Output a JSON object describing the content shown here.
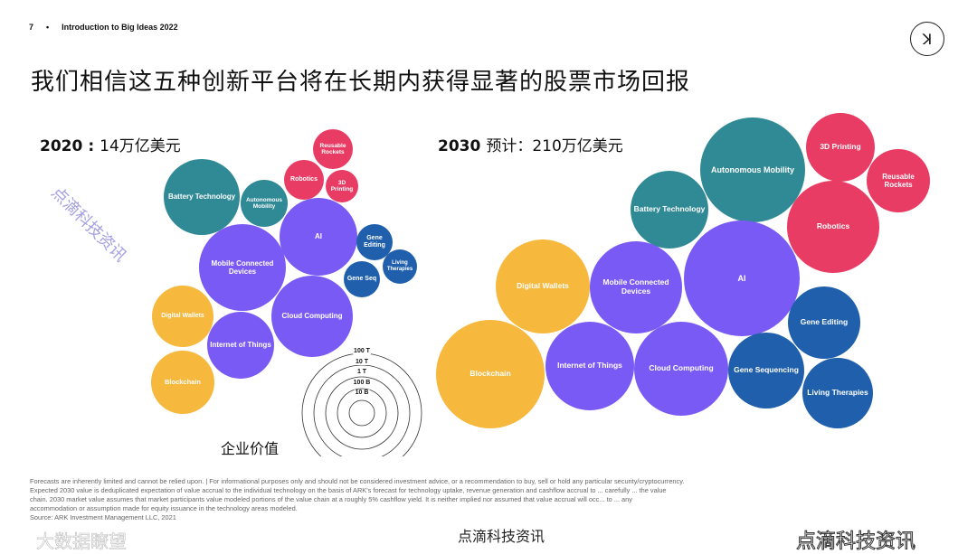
{
  "header": {
    "page_number": "7",
    "separator": "•",
    "deck_title": "Introduction to Big Ideas 2022"
  },
  "logo_text": "ARK",
  "title": "我们相信这五种创新平台将在长期内获得显著的股票市场回报",
  "legend_caption": "企业价值",
  "colors": {
    "teal": "#2f8a95",
    "purple": "#7a5af5",
    "pink": "#e83c64",
    "blue": "#1f5fab",
    "yellow": "#f6b83d"
  },
  "chart_data": [
    {
      "type": "bubble",
      "year": "2020",
      "title_value": "14万亿美元",
      "title_prefix": "",
      "bubbles": [
        {
          "label": "Battery Technology",
          "color": "teal"
        },
        {
          "label": "Autonomous Mobility",
          "color": "teal"
        },
        {
          "label": "Robotics",
          "color": "pink"
        },
        {
          "label": "Reusable Rockets",
          "color": "pink"
        },
        {
          "label": "3D Printing",
          "color": "pink"
        },
        {
          "label": "AI",
          "color": "purple"
        },
        {
          "label": "Mobile Connected Devices",
          "color": "purple"
        },
        {
          "label": "Gene Editing",
          "color": "blue"
        },
        {
          "label": "Living Therapies",
          "color": "blue"
        },
        {
          "label": "Gene Seq",
          "color": "blue"
        },
        {
          "label": "Cloud Computing",
          "color": "purple"
        },
        {
          "label": "Digital Wallets",
          "color": "yellow"
        },
        {
          "label": "Internet of Things",
          "color": "purple"
        },
        {
          "label": "Blockchain",
          "color": "yellow"
        }
      ]
    },
    {
      "type": "bubble",
      "year": "2030",
      "title_prefix": "预计：",
      "title_value": "210万亿美元",
      "bubbles": [
        {
          "label": "Autonomous Mobility",
          "color": "teal"
        },
        {
          "label": "3D Printing",
          "color": "pink"
        },
        {
          "label": "Reusable Rockets",
          "color": "pink"
        },
        {
          "label": "Battery Technology",
          "color": "teal"
        },
        {
          "label": "Robotics",
          "color": "pink"
        },
        {
          "label": "AI",
          "color": "purple"
        },
        {
          "label": "Mobile Connected Devices",
          "color": "purple"
        },
        {
          "label": "Digital Wallets",
          "color": "yellow"
        },
        {
          "label": "Gene Editing",
          "color": "blue"
        },
        {
          "label": "Blockchain",
          "color": "yellow"
        },
        {
          "label": "Internet of Things",
          "color": "purple"
        },
        {
          "label": "Cloud Computing",
          "color": "purple"
        },
        {
          "label": "Gene Sequencing",
          "color": "blue"
        },
        {
          "label": "Living Therapies",
          "color": "blue"
        }
      ]
    }
  ],
  "scale_rings": [
    "100 T",
    "10 T",
    "1 T",
    "100 B",
    "10 B"
  ],
  "footnotes": [
    "Forecasts are inherently limited and cannot be relied upon. | For informational purposes only and should not be considered investment advice, or a recommendation to buy, sell or hold any particular security/cryptocurrency.",
    "Expected 2030 value is deduplicated expectation of value accrual to the individual technology on the basis of ARK's forecast for technology uptake, revenue generation and cashflow accrual to ... carefully ... the value",
    "chain. 2030 market value assumes that market participants value modeled portions of the value chain at a roughly 5% cashflow yield. It is neither implied nor assumed that value accrual will occ... to ... any",
    "accommodation or assumption made for equity issuance in the technology areas modeled.",
    "Source: ARK Investment Management LLC, 2021"
  ],
  "watermarks": {
    "bottom_center": "点滴科技资讯",
    "bottom_right": "点滴科技资讯",
    "bottom_left": "大数据瞭望",
    "diagonal": "点滴科技资讯"
  }
}
